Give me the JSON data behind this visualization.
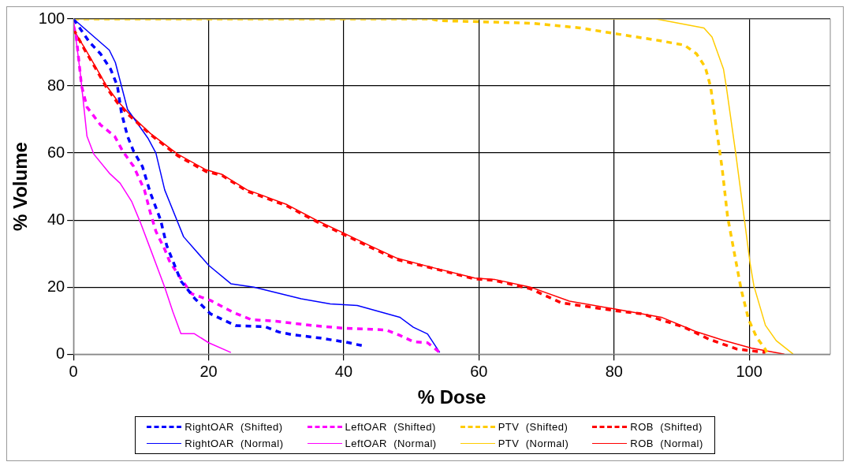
{
  "chart_data": {
    "type": "line",
    "xlabel": "% Dose",
    "ylabel": "% Volume",
    "xlim": [
      0,
      112
    ],
    "ylim": [
      0,
      100
    ],
    "xticks": [
      0,
      20,
      40,
      60,
      80,
      100
    ],
    "yticks": [
      0,
      20,
      40,
      60,
      80,
      100
    ],
    "grid": true,
    "legend": "bottom",
    "marker": "none",
    "series": [
      {
        "name": "RightOAR  (Shifted)",
        "color": "#0000ff",
        "line_style": "dashed",
        "x": [
          0,
          2.4,
          4,
          5.5,
          6.5,
          7.1,
          8,
          8.9,
          10.2,
          11.4,
          12.9,
          13.8,
          15.9,
          17.9,
          20.3,
          24,
          28.3,
          30.4,
          32.4,
          36.5,
          40.5,
          42.8
        ],
        "values": [
          100,
          93,
          89.6,
          85,
          80,
          72,
          65,
          60.5,
          56,
          48,
          40,
          32.4,
          21.8,
          16.7,
          12,
          8.5,
          8.2,
          6.6,
          5.8,
          4.8,
          3.5,
          2.5
        ]
      },
      {
        "name": "LeftOAR  (Shifted)",
        "color": "#ff00ff",
        "line_style": "dashed",
        "x": [
          0,
          0.4,
          1.2,
          2,
          4,
          6.1,
          7.3,
          8.9,
          10.5,
          11.4,
          12.2,
          13.5,
          14.2,
          15.9,
          17.5,
          20.3,
          23.6,
          26.3,
          30,
          35.6,
          40.1,
          44.2,
          46.3,
          48.3,
          50.3,
          52.4,
          54.2
        ],
        "values": [
          98,
          95,
          80,
          73.7,
          68.4,
          65,
          60.5,
          56,
          49,
          42,
          36.6,
          31.3,
          27.8,
          22.5,
          18,
          16,
          12.5,
          10.3,
          9.8,
          8.5,
          7.7,
          7.4,
          7.2,
          5.6,
          3.7,
          3.4,
          0.5
        ]
      },
      {
        "name": "PTV  (Shifted)",
        "color": "#ffcc00",
        "line_style": "dashed",
        "x": [
          0,
          53,
          54,
          68,
          75,
          80.5,
          86.2,
          90.4,
          92.2,
          93.5,
          94.3,
          95.1,
          96,
          96.8,
          97.8,
          98.8,
          99.9,
          101.1,
          102.4,
          102.6
        ],
        "values": [
          100,
          100,
          99.5,
          98.7,
          97.3,
          95.5,
          93.7,
          92.2,
          89.6,
          85.6,
          79.7,
          68,
          55.4,
          41,
          30.2,
          19.4,
          10.4,
          5,
          1.4,
          0.5
        ]
      },
      {
        "name": "ROB  (Shifted)",
        "color": "#ff0000",
        "line_style": "dashed",
        "x": [
          0,
          1.6,
          3.2,
          4.9,
          6.5,
          8.1,
          11.4,
          15.4,
          19.6,
          22,
          25.7,
          27.5,
          31.6,
          36.1,
          39.8,
          43.8,
          47.9,
          52.8,
          59.4,
          62.3,
          67.6,
          72.2,
          80,
          84.2,
          90.4,
          94,
          98.2,
          102.4
        ],
        "values": [
          97,
          91,
          85.5,
          79.5,
          75,
          71.5,
          65.5,
          59.2,
          54.5,
          53.3,
          48.6,
          47.3,
          44.2,
          39.4,
          35.9,
          32,
          28.2,
          25.8,
          22.4,
          22,
          19.5,
          15.3,
          13,
          12,
          8,
          4.5,
          1.5,
          0.5
        ]
      },
      {
        "name": "RightOAR  (Normal)",
        "color": "#0000ff",
        "line_style": "solid",
        "x": [
          0,
          5.3,
          6.2,
          7.1,
          8,
          11,
          12.2,
          13.5,
          16.3,
          20,
          23.3,
          26.7,
          33.7,
          38,
          42,
          48.3,
          50.3,
          52.4,
          54.2
        ],
        "values": [
          100,
          90.7,
          87,
          80,
          73,
          64.5,
          60,
          49,
          35,
          26.5,
          21,
          20,
          16.5,
          15,
          14.5,
          11,
          8,
          6,
          0.5
        ]
      },
      {
        "name": "LeftOAR  (Normal)",
        "color": "#ff00ff",
        "line_style": "solid",
        "x": [
          0,
          1,
          2,
          3,
          5.3,
          6.9,
          8.6,
          9.9,
          11.4,
          13.5,
          14.7,
          15.9,
          17.9,
          20,
          23.3
        ],
        "values": [
          100,
          84,
          65,
          59.7,
          54,
          51,
          45.6,
          39.3,
          31.3,
          20,
          12.7,
          6.1,
          6.1,
          3.4,
          0.5
        ]
      },
      {
        "name": "PTV  (Normal)",
        "color": "#ffcc00",
        "line_style": "solid",
        "x": [
          0,
          86.2,
          93.3,
          94.5,
          96.2,
          96.6,
          98,
          99.3,
          100.1,
          100.7,
          102.4,
          104,
          106.5
        ],
        "values": [
          100,
          100,
          97.3,
          94.6,
          85,
          80,
          60,
          40,
          27.5,
          20.3,
          8.6,
          4,
          0
        ]
      },
      {
        "name": "ROB  (Normal)",
        "color": "#ff0000",
        "line_style": "solid",
        "x": [
          0,
          1.6,
          3.2,
          4.9,
          6.5,
          8.1,
          11.4,
          15.4,
          19.6,
          22,
          25.7,
          27.5,
          31.6,
          36.1,
          39.8,
          43.8,
          47.9,
          52.8,
          59.4,
          62.3,
          67.6,
          73.4,
          80,
          87,
          92,
          96.2,
          100.3,
          105.2
        ],
        "values": [
          96.8,
          91.5,
          86,
          80,
          75.6,
          72,
          65.8,
          59.7,
          55,
          53.6,
          49,
          47.7,
          44.6,
          39.8,
          36.3,
          32.4,
          28.6,
          26,
          22.7,
          22.3,
          20,
          15.8,
          13.5,
          11,
          6.8,
          4.1,
          1.8,
          0
        ]
      }
    ]
  }
}
